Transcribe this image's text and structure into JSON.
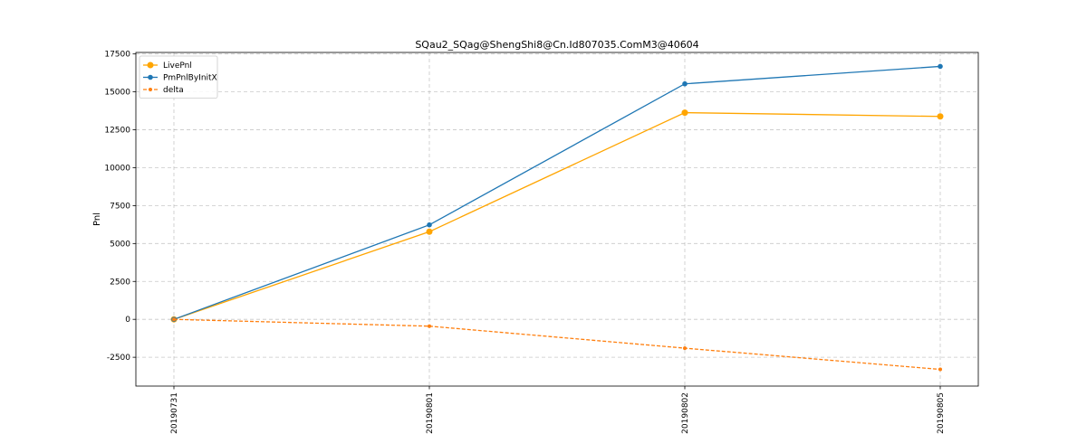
{
  "chart_data": {
    "type": "line",
    "title": "SQau2_SQag@ShengShi8@Cn.Id807035.ComM3@40604",
    "xlabel": "",
    "ylabel": "Pnl",
    "categories": [
      "20190731",
      "20190801",
      "20190802",
      "20190805"
    ],
    "ylim": [
      -4400,
      17600
    ],
    "yticks": [
      -2500,
      0,
      2500,
      5000,
      7500,
      10000,
      12500,
      15000,
      17500
    ],
    "grid": true,
    "legend_position": "top-left",
    "series": [
      {
        "name": "LivePnl",
        "values": [
          0,
          5780,
          13630,
          13380
        ],
        "color": "#ffa500",
        "style": "solid",
        "marker": "large-circle"
      },
      {
        "name": "PmPnlByInitX",
        "values": [
          0,
          6230,
          15530,
          16680
        ],
        "color": "#1f77b4",
        "style": "solid",
        "marker": "circle"
      },
      {
        "name": "delta",
        "values": [
          0,
          -450,
          -1900,
          -3300
        ],
        "color": "#ff7f0e",
        "style": "dashed",
        "marker": "small-circle"
      }
    ]
  }
}
